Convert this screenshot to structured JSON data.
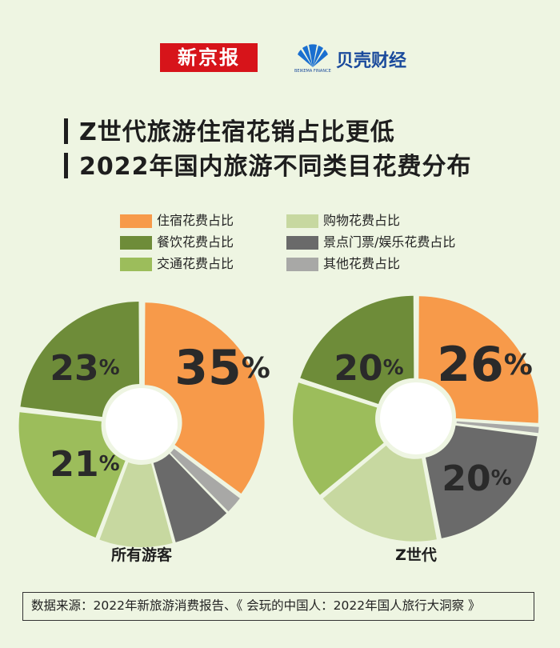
{
  "logos": {
    "left": "新京报",
    "right": "贝壳财经",
    "right_sub": "BEIKEMA FINANCE"
  },
  "title": {
    "line1": "Z世代旅游住宿花销占比更低",
    "line2": "2022年国内旅游不同类目花费分布"
  },
  "legend": [
    {
      "label": "住宿花费占比",
      "color": "#f79a4a"
    },
    {
      "label": "餐饮花费占比",
      "color": "#6e8c39"
    },
    {
      "label": "交通花费占比",
      "color": "#9cbd5b"
    },
    {
      "label": "购物花费占比",
      "color": "#c7d8a0"
    },
    {
      "label": "景点门票/娱乐花费占比",
      "color": "#6a6a6a"
    },
    {
      "label": "其他花费占比",
      "color": "#a8a8a6"
    }
  ],
  "chart_data": [
    {
      "type": "pie",
      "title": "所有游客",
      "categories": [
        "住宿花费占比",
        "其他花费占比",
        "景点门票/娱乐花费占比",
        "购物花费占比",
        "交通花费占比",
        "餐饮花费占比"
      ],
      "values": [
        35,
        2.5,
        8,
        10,
        21,
        23
      ],
      "labels": [
        "35%",
        "",
        "",
        "",
        "21%",
        "23%"
      ]
    },
    {
      "type": "pie",
      "title": "Z世代",
      "categories": [
        "住宿花费占比",
        "其他花费占比",
        "景点门票/娱乐花费占比",
        "购物花费占比",
        "交通花费占比",
        "餐饮花费占比"
      ],
      "values": [
        26,
        1,
        20,
        17,
        16,
        20
      ],
      "labels": [
        "26%",
        "",
        "20%",
        "",
        "",
        "20%"
      ]
    }
  ],
  "source": "数据来源：2022年新旅游消费报告、《 会玩的中国人：2022年国人旅行大洞察 》"
}
